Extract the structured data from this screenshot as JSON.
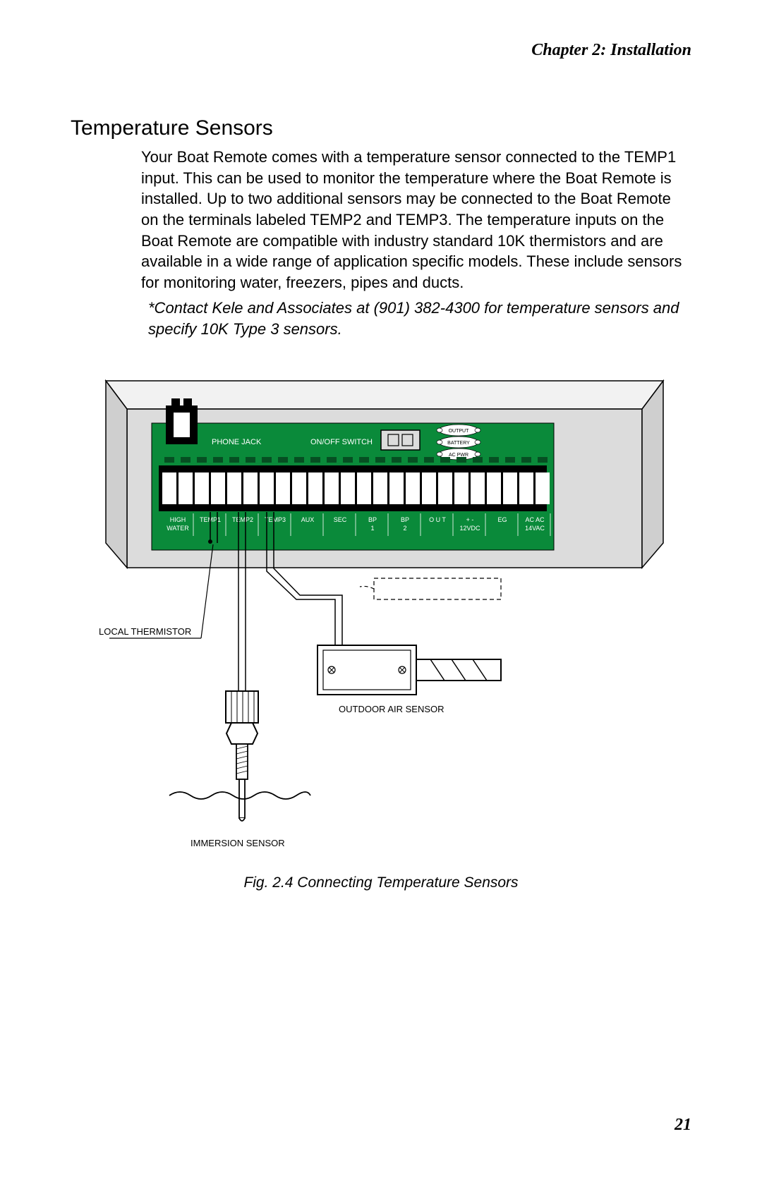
{
  "header": {
    "title": "Chapter 2: Installation"
  },
  "section": {
    "title": "Temperature Sensors"
  },
  "body": {
    "paragraph": "Your Boat Remote comes with a temperature sensor connected to the TEMP1 input. This can be used to monitor the temperature where the Boat Remote is installed. Up to two additional sensors may be connected to the Boat Remote on the terminals labeled TEMP2 and TEMP3. The temperature inputs on the Boat Remote are compatible with industry standard 10K thermistors and are available in a wide range of application specific models. These include sensors for monitoring water, freezers, pipes and ducts.",
    "note": "*Contact Kele and Associates at (901) 382-4300 for temperature sensors and specify 10K Type 3 sensors."
  },
  "diagram": {
    "colors": {
      "board": "#0a8a3a",
      "enclosure_fill": "#dcdcdc",
      "enclosure_light": "#f2f2f2",
      "black": "#000000",
      "white": "#ffffff"
    },
    "labels": {
      "phone_jack": "PHONE JACK",
      "on_off": "ON/OFF SWITCH",
      "output": "OUTPUT",
      "battery": "BATTERY",
      "ac_pwr": "AC PWR",
      "local_thermistor": "LOCAL THERMISTOR",
      "outdoor_air": "OUTDOOR AIR SENSOR",
      "immersion": "IMMERSION SENSOR"
    },
    "terminals": [
      {
        "line1": "HIGH",
        "line2": "WATER"
      },
      {
        "line1": "TEMP1",
        "line2": ""
      },
      {
        "line1": "TEMP2",
        "line2": ""
      },
      {
        "line1": "TEMP3",
        "line2": ""
      },
      {
        "line1": "AUX",
        "line2": ""
      },
      {
        "line1": "SEC",
        "line2": ""
      },
      {
        "line1": "BP",
        "line2": "1"
      },
      {
        "line1": "BP",
        "line2": "2"
      },
      {
        "line1": "O U T",
        "line2": ""
      },
      {
        "line1": "+ -",
        "line2": "12VDC"
      },
      {
        "line1": "EG",
        "line2": ""
      },
      {
        "line1": "AC AC",
        "line2": "14VAC"
      }
    ]
  },
  "figure": {
    "caption": "Fig. 2.4 Connecting Temperature Sensors"
  },
  "page": {
    "number": "21"
  }
}
